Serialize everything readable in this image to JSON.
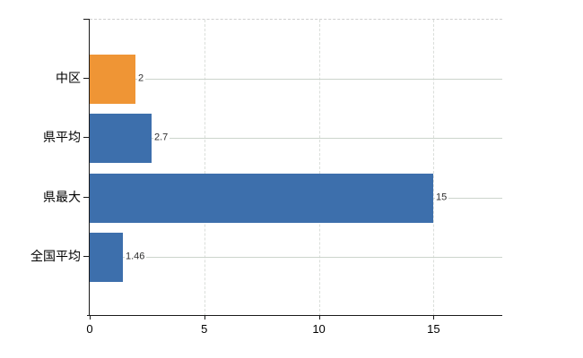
{
  "chart_data": {
    "type": "bar",
    "orientation": "horizontal",
    "title": "",
    "xlabel": "",
    "ylabel": "",
    "categories": [
      "中区",
      "県平均",
      "県最大",
      "全国平均"
    ],
    "values": [
      2,
      2.7,
      15,
      1.46
    ],
    "value_labels": [
      "2",
      "2.7",
      "15",
      "1.46"
    ],
    "bar_colors": [
      "#EF9535",
      "#3D6FAC",
      "#3D6FAC",
      "#3D6FAC"
    ],
    "xlim": [
      0,
      18
    ],
    "xticks": [
      0,
      5,
      10,
      15
    ],
    "xtick_labels": [
      "0",
      "5",
      "10",
      "15"
    ],
    "grid": {
      "vertical": "dashed",
      "horizontal": "solid"
    },
    "legend": "none"
  },
  "colors": {
    "background": "#ffffff",
    "bar_orange": "#EF9535",
    "bar_blue": "#3D6FAC",
    "axis": "#1a1a1a",
    "grid_horizontal": "#ccd4cc",
    "grid_vertical": "#dadeda",
    "plot_border_top": "#cfcfcf",
    "value_label_text": "#2e2e2e",
    "axis_label_text": "#000000"
  }
}
